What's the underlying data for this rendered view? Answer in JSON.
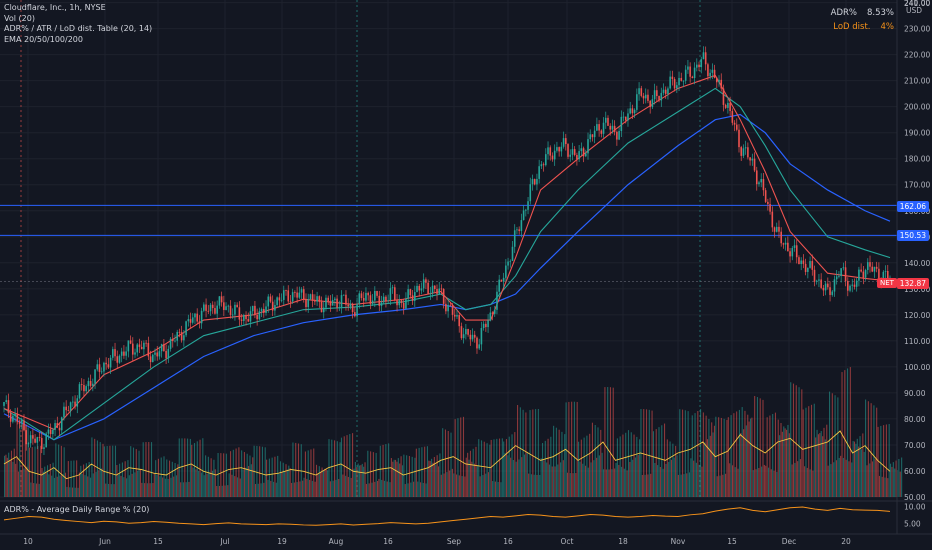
{
  "legend": {
    "title": "Cloudflare, Inc., 1h, NYSE",
    "vol": "Vol (20)",
    "adr_table": "ADR% / ATR / LoD dist. Table (20, 14)",
    "ema": "EMA 20/50/100/200"
  },
  "table": {
    "adr_label": "ADR%",
    "adr_value": "8.53%",
    "lod_label": "LoD dist.",
    "lod_value": "4%"
  },
  "sub_legend": "ADR% - Average Daily Range % (20)",
  "price_tags": {
    "level1": "162.06",
    "level2": "150.53",
    "ticker": "NET",
    "last": "132.87"
  },
  "colors": {
    "background": "#131722",
    "up": "#26a69a",
    "down": "#ef5350",
    "ema20": "#ef5350",
    "ema50": "#26a69a",
    "ema100": "#2962ff",
    "ema200": "#1e3a8a",
    "hline": "#2962ff",
    "adr": "#f7931a",
    "vol_ma": "#f5c542"
  },
  "chart_data": {
    "type": "line",
    "ylim": [
      50,
      241
    ],
    "y_ticks": [
      50,
      60,
      70,
      80,
      90,
      100,
      110,
      120,
      130,
      140,
      150,
      160,
      170,
      180,
      190,
      200,
      210,
      220,
      230,
      240
    ],
    "y_tick_labels": [
      "50.00",
      "60.00",
      "70.00",
      "80.00",
      "90.00",
      "100.00",
      "110.00",
      "120.00",
      "130.00",
      "140.00",
      "150.00",
      "160.00",
      "170.00",
      "180.00",
      "190.00",
      "200.00",
      "210.00",
      "220.00",
      "230.00",
      "240.00"
    ],
    "y_top_labels": [
      "241.00",
      "USD"
    ],
    "x_ticks": [
      "10",
      "Jun",
      "15",
      "Jul",
      "19",
      "Aug",
      "16",
      "Sep",
      "16",
      "Oct",
      "18",
      "Nov",
      "15",
      "Dec",
      "20"
    ],
    "price_path": [
      [
        0,
        85
      ],
      [
        1,
        80
      ],
      [
        2,
        72
      ],
      [
        3,
        71
      ],
      [
        4,
        76
      ],
      [
        5,
        83
      ],
      [
        6,
        90
      ],
      [
        7,
        95
      ],
      [
        8,
        101
      ],
      [
        9,
        104
      ],
      [
        10,
        107
      ],
      [
        11,
        108
      ],
      [
        12,
        104
      ],
      [
        13,
        107
      ],
      [
        14,
        112
      ],
      [
        15,
        118
      ],
      [
        16,
        121
      ],
      [
        17,
        124
      ],
      [
        18,
        123
      ],
      [
        19,
        119
      ],
      [
        20,
        120
      ],
      [
        21,
        123
      ],
      [
        22,
        126
      ],
      [
        23,
        128
      ],
      [
        24,
        127
      ],
      [
        25,
        125
      ],
      [
        26,
        124
      ],
      [
        27,
        126
      ],
      [
        28,
        122
      ],
      [
        29,
        128
      ],
      [
        30,
        125
      ],
      [
        31,
        128
      ],
      [
        32,
        124
      ],
      [
        33,
        130
      ],
      [
        34,
        131
      ],
      [
        35,
        128
      ],
      [
        36,
        120
      ],
      [
        37,
        112
      ],
      [
        38,
        110
      ],
      [
        39,
        120
      ],
      [
        40,
        135
      ],
      [
        41,
        150
      ],
      [
        42,
        165
      ],
      [
        43,
        178
      ],
      [
        44,
        183
      ],
      [
        45,
        185
      ],
      [
        46,
        180
      ],
      [
        47,
        188
      ],
      [
        48,
        194
      ],
      [
        49,
        190
      ],
      [
        50,
        197
      ],
      [
        51,
        205
      ],
      [
        52,
        202
      ],
      [
        53,
        207
      ],
      [
        54,
        210
      ],
      [
        55,
        213
      ],
      [
        56,
        218
      ],
      [
        57,
        211
      ],
      [
        58,
        200
      ],
      [
        59,
        185
      ],
      [
        60,
        178
      ],
      [
        61,
        165
      ],
      [
        62,
        150
      ],
      [
        63,
        145
      ],
      [
        64,
        140
      ],
      [
        65,
        135
      ],
      [
        66,
        128
      ],
      [
        67,
        137
      ],
      [
        68,
        130
      ],
      [
        69,
        139
      ],
      [
        70,
        136
      ],
      [
        71,
        134
      ]
    ],
    "ema20_path": [
      [
        0,
        84
      ],
      [
        4,
        76
      ],
      [
        8,
        97
      ],
      [
        12,
        106
      ],
      [
        16,
        118
      ],
      [
        20,
        120
      ],
      [
        24,
        126
      ],
      [
        28,
        124
      ],
      [
        32,
        126
      ],
      [
        35,
        129
      ],
      [
        37,
        118
      ],
      [
        39,
        118
      ],
      [
        41,
        142
      ],
      [
        43,
        168
      ],
      [
        46,
        180
      ],
      [
        50,
        195
      ],
      [
        54,
        207
      ],
      [
        57,
        212
      ],
      [
        59,
        195
      ],
      [
        61,
        175
      ],
      [
        63,
        152
      ],
      [
        66,
        136
      ],
      [
        69,
        134
      ],
      [
        71,
        133
      ]
    ],
    "ema50_path": [
      [
        0,
        84
      ],
      [
        4,
        72
      ],
      [
        8,
        86
      ],
      [
        12,
        100
      ],
      [
        16,
        112
      ],
      [
        20,
        117
      ],
      [
        24,
        122
      ],
      [
        28,
        123
      ],
      [
        32,
        125
      ],
      [
        35,
        128
      ],
      [
        37,
        122
      ],
      [
        39,
        124
      ],
      [
        41,
        135
      ],
      [
        43,
        152
      ],
      [
        46,
        168
      ],
      [
        50,
        186
      ],
      [
        54,
        198
      ],
      [
        57,
        207
      ],
      [
        59,
        200
      ],
      [
        61,
        185
      ],
      [
        63,
        168
      ],
      [
        66,
        150
      ],
      [
        69,
        145
      ],
      [
        71,
        142
      ]
    ],
    "ema100_path": [
      [
        0,
        82
      ],
      [
        4,
        72
      ],
      [
        8,
        80
      ],
      [
        12,
        92
      ],
      [
        16,
        104
      ],
      [
        20,
        112
      ],
      [
        24,
        117
      ],
      [
        28,
        120
      ],
      [
        32,
        122
      ],
      [
        35,
        124
      ],
      [
        37,
        122
      ],
      [
        39,
        124
      ],
      [
        41,
        128
      ],
      [
        43,
        138
      ],
      [
        46,
        152
      ],
      [
        50,
        170
      ],
      [
        54,
        185
      ],
      [
        57,
        195
      ],
      [
        59,
        197
      ],
      [
        61,
        190
      ],
      [
        63,
        178
      ],
      [
        66,
        168
      ],
      [
        69,
        160
      ],
      [
        71,
        156
      ]
    ],
    "volume": [
      18,
      22,
      14,
      12,
      16,
      10,
      12,
      18,
      14,
      12,
      16,
      15,
      13,
      12,
      16,
      18,
      14,
      12,
      15,
      16,
      14,
      12,
      13,
      15,
      14,
      12,
      16,
      18,
      14,
      13,
      15,
      16,
      12,
      14,
      16,
      20,
      22,
      18,
      17,
      16,
      22,
      28,
      24,
      20,
      22,
      26,
      20,
      24,
      30,
      20,
      22,
      24,
      22,
      20,
      24,
      26,
      30,
      22,
      25,
      34,
      28,
      24,
      30,
      32,
      26,
      28,
      30,
      36,
      24,
      28,
      20,
      14
    ],
    "adr": [
      6,
      6.5,
      7,
      6.8,
      6.2,
      5.8,
      5.5,
      5.2,
      5.6,
      5.4,
      5.0,
      5.2,
      5.5,
      5.3,
      5.0,
      4.8,
      4.6,
      4.9,
      5.1,
      4.8,
      4.7,
      4.6,
      4.8,
      4.7,
      4.5,
      4.4,
      4.6,
      4.8,
      4.5,
      4.7,
      4.9,
      5.2,
      5.0,
      4.8,
      5.0,
      5.4,
      5.8,
      6.2,
      6.6,
      7.0,
      6.8,
      7.2,
      7.6,
      7.4,
      7.0,
      6.8,
      7.2,
      7.6,
      7.4,
      7.0,
      6.8,
      7.0,
      7.3,
      7.1,
      7.0,
      7.5,
      7.8,
      8.6,
      9.2,
      9.6,
      8.8,
      8.4,
      9.0,
      9.6,
      9.8,
      9.2,
      8.8,
      9.4,
      9.0,
      8.9,
      8.8,
      8.5
    ]
  }
}
